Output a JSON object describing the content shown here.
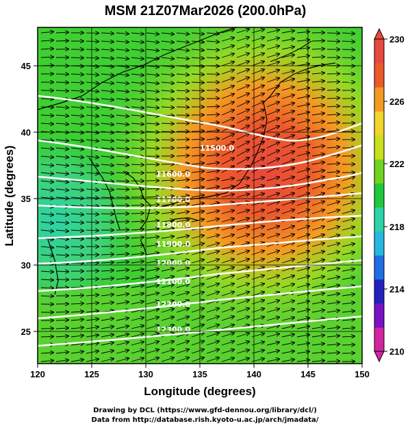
{
  "title": "MSM 21Z07Mar2026 (200.0hPa)",
  "x_axis": {
    "label": "Longitude (degrees)",
    "range": [
      120,
      150
    ],
    "ticks": [
      "120",
      "125",
      "130",
      "135",
      "140",
      "145",
      "150"
    ]
  },
  "y_axis": {
    "label": "Latitude (degrees)",
    "range": [
      22.4,
      47.6
    ],
    "ticks": [
      "25",
      "30",
      "35",
      "40",
      "45"
    ]
  },
  "colorbar": {
    "range": [
      210,
      230
    ],
    "labels": [
      "230",
      "226",
      "222",
      "218",
      "214",
      "210"
    ],
    "colors": [
      "#d3259f",
      "#7a12c6",
      "#2222bf",
      "#1f6fe6",
      "#27b8e0",
      "#2cd3a6",
      "#21c83c",
      "#6fd31f",
      "#c8e01e",
      "#f2d42e",
      "#f49a22",
      "#ec5a2a",
      "#e8483d"
    ]
  },
  "contour_labels": [
    "11500.0",
    "11600.0",
    "11700.0",
    "11800.0",
    "11900.0",
    "12000.0",
    "12100.0",
    "12200.0",
    "12300.0"
  ],
  "credits": [
    "Drawing by DCL (https://www.gfd-dennou.org/library/dcl/)",
    "Data from http://database.rish.kyoto-u.ac.jp/arch/jmadata/"
  ]
}
